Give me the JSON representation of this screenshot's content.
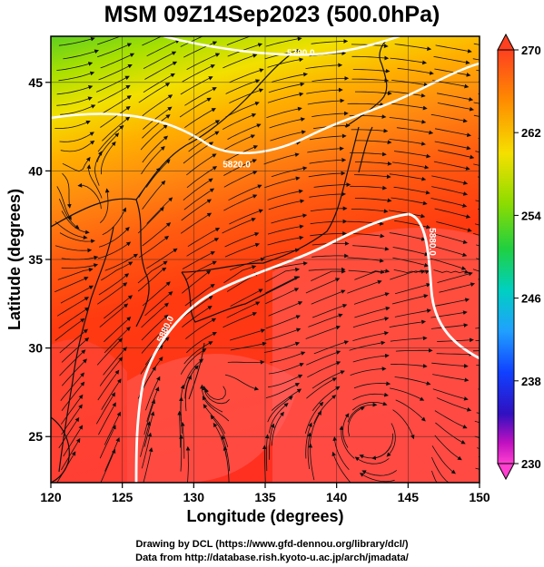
{
  "title": "MSM 09Z14Sep2023 (500.0hPa)",
  "x_axis": {
    "label": "Longitude (degrees)",
    "ticks": [
      120,
      125,
      130,
      135,
      140,
      145,
      150
    ],
    "range": [
      120,
      150
    ]
  },
  "y_axis": {
    "label": "Latitude  (degrees)",
    "ticks": [
      25,
      30,
      35,
      40,
      45
    ],
    "range": [
      22.4,
      47.6
    ]
  },
  "colorbar": {
    "ticks": [
      270,
      262,
      254,
      246,
      238,
      230
    ],
    "min": 230,
    "max": 270
  },
  "contours": [
    {
      "label": "5700.0",
      "lon_label": 137.5,
      "lat_label": 46.5
    },
    {
      "label": "5820.0",
      "lon_label": 133.0,
      "lat_label": 40.2
    },
    {
      "label": "5880.0",
      "lon_label": 128.2,
      "lat_label": 31.0
    },
    {
      "label": "5880.0",
      "lon_label": 146.5,
      "lat_label": 36.0
    }
  ],
  "colors": {
    "cold": "#7fd400",
    "warm": "#ff3a1a",
    "hot": "#ff5a5a"
  },
  "credits": {
    "line1": "Drawing by DCL (https://www.gfd-dennou.org/library/dcl/)",
    "line2": "Data from http://database.rish.kyoto-u.ac.jp/arch/jmadata/"
  }
}
